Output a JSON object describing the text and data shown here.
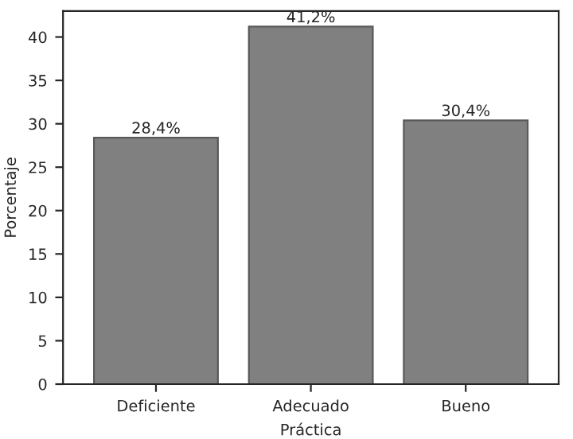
{
  "chart_data": {
    "type": "bar",
    "xlabel": "Práctica",
    "ylabel": "Porcentaje",
    "categories": [
      "Deficiente",
      "Adecuado",
      "Bueno"
    ],
    "values": [
      28.4,
      41.2,
      30.4
    ],
    "value_labels": [
      "28,4%",
      "41,2%",
      "30,4%"
    ],
    "color": "#808080",
    "ylim": [
      0,
      43
    ],
    "yticks": [
      0,
      5,
      10,
      15,
      20,
      25,
      30,
      35,
      40
    ],
    "grid": false
  }
}
